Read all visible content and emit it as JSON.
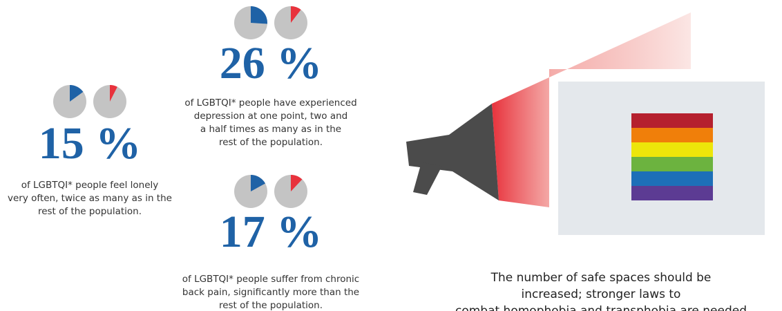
{
  "stats": [
    {
      "value": 15,
      "label": "15 %",
      "comparison": 7.5,
      "lines": [
        "of LGBTQI* people feel lonely",
        "very often, twice as many as in the",
        "rest of the population."
      ]
    },
    {
      "value": 26,
      "label": "26 %",
      "comparison": 10.4,
      "lines": [
        "of LGBTQI* people have experienced",
        "depression at one point, two and",
        "a half times as many as in the",
        "rest of the population."
      ]
    },
    {
      "value": 17,
      "label": "17 %",
      "comparison": 12,
      "lines": [
        "of LGBTQI* people suffer from chronic",
        "back pain, significantly more than the",
        "rest of the population."
      ]
    }
  ],
  "colors": {
    "group": "#1f62a6",
    "comparison": "#e8323c",
    "pie_base": "#c4c4c4"
  },
  "message": {
    "lines": [
      "The number of safe spaces should be",
      "increased; stronger laws to",
      "combat homophobia and transphobia are needed"
    ]
  }
}
